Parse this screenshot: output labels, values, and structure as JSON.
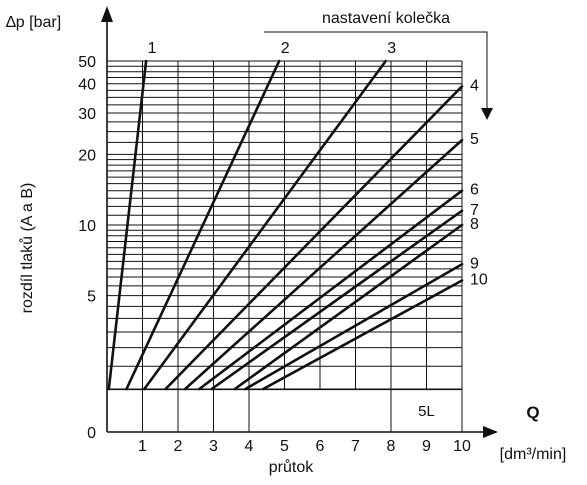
{
  "chart_data": {
    "type": "line",
    "y_axis_title": "∆p [bar]",
    "y_axis_label": "rozdíl tlaků (A a B)",
    "x_axis_label": "průtok",
    "x_axis_letter": "Q",
    "x_axis_unit": "[dm³/min]",
    "legend_title": "nastavení kolečka",
    "annotation": "5L",
    "y_scale": "log",
    "x_range": [
      0,
      10
    ],
    "y_range": [
      2,
      50
    ],
    "x_ticks": [
      "0",
      "1",
      "2",
      "3",
      "4",
      "5",
      "6",
      "7",
      "8",
      "9",
      "10"
    ],
    "y_ticks": [
      "5",
      "10",
      "20",
      "30",
      "40",
      "50"
    ],
    "grid": "on",
    "series": [
      {
        "name": "1",
        "points": [
          [
            0.05,
            2
          ],
          [
            1.1,
            50
          ]
        ]
      },
      {
        "name": "2",
        "points": [
          [
            0.55,
            2
          ],
          [
            4.85,
            50
          ]
        ]
      },
      {
        "name": "3",
        "points": [
          [
            1.05,
            2
          ],
          [
            7.85,
            50
          ]
        ]
      },
      {
        "name": "4",
        "points": [
          [
            1.65,
            2
          ],
          [
            10.0,
            39
          ]
        ]
      },
      {
        "name": "5",
        "points": [
          [
            2.2,
            2
          ],
          [
            10.0,
            23
          ]
        ]
      },
      {
        "name": "6",
        "points": [
          [
            2.6,
            2
          ],
          [
            10.0,
            14
          ]
        ]
      },
      {
        "name": "7",
        "points": [
          [
            2.95,
            2
          ],
          [
            10.0,
            11.5
          ]
        ]
      },
      {
        "name": "8",
        "points": [
          [
            3.6,
            2
          ],
          [
            10.0,
            10
          ]
        ]
      },
      {
        "name": "9",
        "points": [
          [
            3.9,
            2
          ],
          [
            10.0,
            6.8
          ]
        ]
      },
      {
        "name": "10",
        "points": [
          [
            4.4,
            2
          ],
          [
            10.0,
            5.8
          ]
        ]
      }
    ]
  }
}
